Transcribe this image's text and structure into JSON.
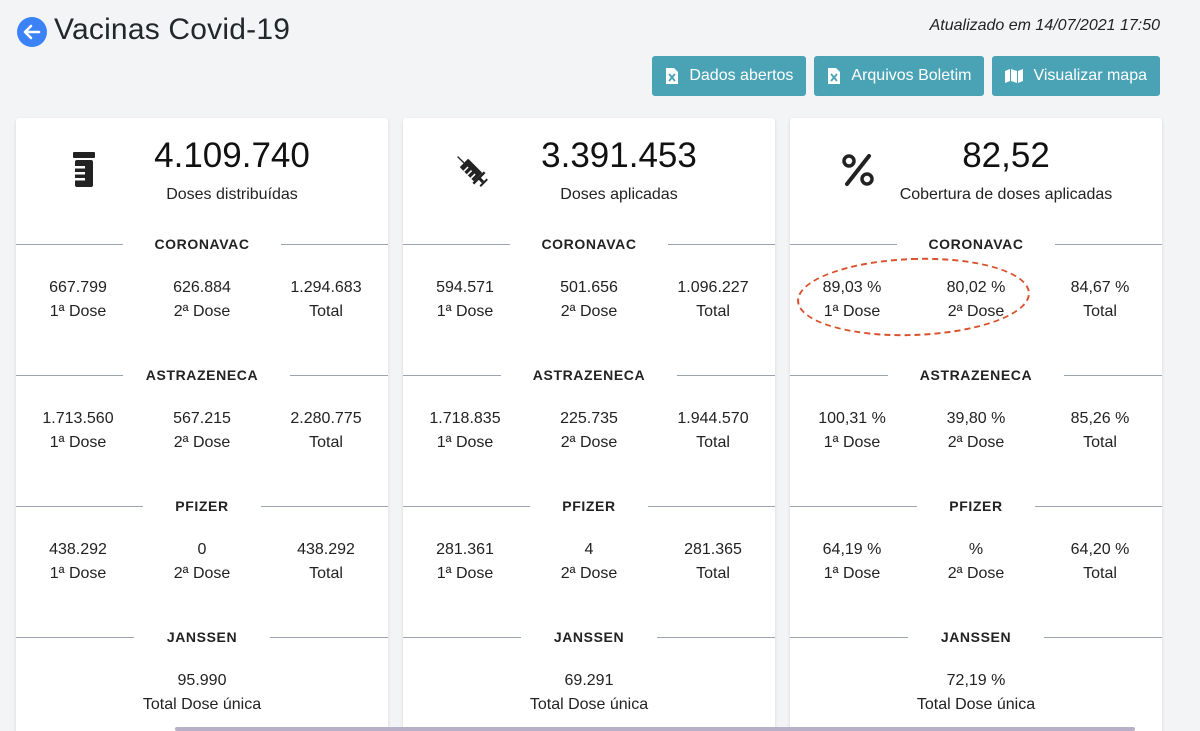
{
  "header": {
    "title": "Vacinas Covid-19",
    "updated": "Atualizado em 14/07/2021 17:50",
    "buttons": [
      {
        "label": "Dados abertos",
        "icon": "excel-file-icon"
      },
      {
        "label": "Arquivos Boletim",
        "icon": "excel-file-icon"
      },
      {
        "label": "Visualizar mapa",
        "icon": "map-icon"
      }
    ]
  },
  "colors": {
    "button": "#4aa3b5",
    "back": "#3b82f6",
    "annotation": "#d9512c"
  },
  "cards": [
    {
      "icon": "vial-icon",
      "value": "4.109.740",
      "label": "Doses distribuídas",
      "sections": [
        {
          "name": "CORONAVAC",
          "cols": [
            {
              "value": "667.799",
              "label": "1ª Dose"
            },
            {
              "value": "626.884",
              "label": "2ª Dose"
            },
            {
              "value": "1.294.683",
              "label": "Total"
            }
          ]
        },
        {
          "name": "ASTRAZENECA",
          "cols": [
            {
              "value": "1.713.560",
              "label": "1ª Dose"
            },
            {
              "value": "567.215",
              "label": "2ª Dose"
            },
            {
              "value": "2.280.775",
              "label": "Total"
            }
          ]
        },
        {
          "name": "PFIZER",
          "cols": [
            {
              "value": "438.292",
              "label": "1ª Dose"
            },
            {
              "value": "0",
              "label": "2ª Dose"
            },
            {
              "value": "438.292",
              "label": "Total"
            }
          ]
        }
      ],
      "janssen": {
        "name": "JANSSEN",
        "value": "95.990",
        "label": "Total Dose única"
      }
    },
    {
      "icon": "syringe-icon",
      "value": "3.391.453",
      "label": "Doses aplicadas",
      "sections": [
        {
          "name": "CORONAVAC",
          "cols": [
            {
              "value": "594.571",
              "label": "1ª Dose"
            },
            {
              "value": "501.656",
              "label": "2ª Dose"
            },
            {
              "value": "1.096.227",
              "label": "Total"
            }
          ]
        },
        {
          "name": "ASTRAZENECA",
          "cols": [
            {
              "value": "1.718.835",
              "label": "1ª Dose"
            },
            {
              "value": "225.735",
              "label": "2ª Dose"
            },
            {
              "value": "1.944.570",
              "label": "Total"
            }
          ]
        },
        {
          "name": "PFIZER",
          "cols": [
            {
              "value": "281.361",
              "label": "1ª Dose"
            },
            {
              "value": "4",
              "label": "2ª Dose"
            },
            {
              "value": "281.365",
              "label": "Total"
            }
          ]
        }
      ],
      "janssen": {
        "name": "JANSSEN",
        "value": "69.291",
        "label": "Total Dose única"
      }
    },
    {
      "icon": "percent-icon",
      "value": "82,52",
      "label": "Cobertura de doses aplicadas",
      "sections": [
        {
          "name": "CORONAVAC",
          "cols": [
            {
              "value": "89,03 %",
              "label": "1ª Dose"
            },
            {
              "value": "80,02 %",
              "label": "2ª Dose"
            },
            {
              "value": "84,67 %",
              "label": "Total"
            }
          ]
        },
        {
          "name": "ASTRAZENECA",
          "cols": [
            {
              "value": "100,31 %",
              "label": "1ª Dose"
            },
            {
              "value": "39,80 %",
              "label": "2ª Dose"
            },
            {
              "value": "85,26 %",
              "label": "Total"
            }
          ]
        },
        {
          "name": "PFIZER",
          "cols": [
            {
              "value": "64,19 %",
              "label": "1ª Dose"
            },
            {
              "value": "%",
              "label": "2ª Dose"
            },
            {
              "value": "64,20 %",
              "label": "Total"
            }
          ]
        }
      ],
      "janssen": {
        "name": "JANSSEN",
        "value": "72,19 %",
        "label": "Total Dose única"
      }
    }
  ]
}
